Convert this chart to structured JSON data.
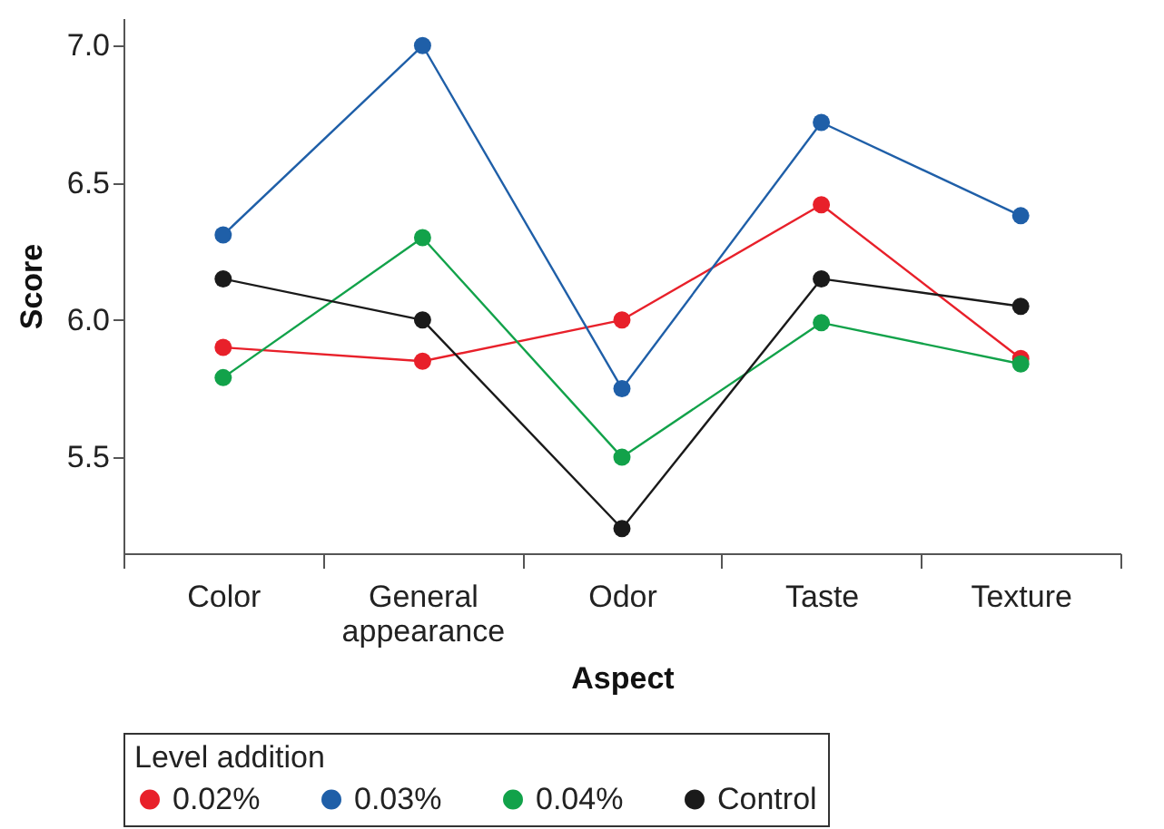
{
  "chart_data": {
    "type": "line",
    "xlabel": "Aspect",
    "ylabel": "Score",
    "legend_title": "Level addition",
    "categories": [
      "Color",
      "General appearance",
      "Odor",
      "Taste",
      "Texture"
    ],
    "series": [
      {
        "name": "0.02%",
        "color": "#e8202a",
        "values": [
          5.9,
          5.85,
          6.0,
          6.42,
          5.86
        ]
      },
      {
        "name": "0.03%",
        "color": "#1f5fa8",
        "values": [
          6.31,
          7.0,
          5.75,
          6.72,
          6.38
        ]
      },
      {
        "name": "0.04%",
        "color": "#12a24a",
        "values": [
          5.79,
          6.3,
          5.5,
          5.99,
          5.84
        ]
      },
      {
        "name": "Control",
        "color": "#1a1a1a",
        "values": [
          6.15,
          6.0,
          5.24,
          6.15,
          6.05
        ]
      }
    ],
    "ylim": [
      5.15,
      7.1
    ],
    "yticks": [
      5.5,
      {
        "value": 6,
        "label": "6.0"
      },
      6.5,
      {
        "value": 7,
        "label": "7.0"
      }
    ],
    "grid": false,
    "legend": "bottom",
    "marker": "circle",
    "line_style": "solid"
  }
}
